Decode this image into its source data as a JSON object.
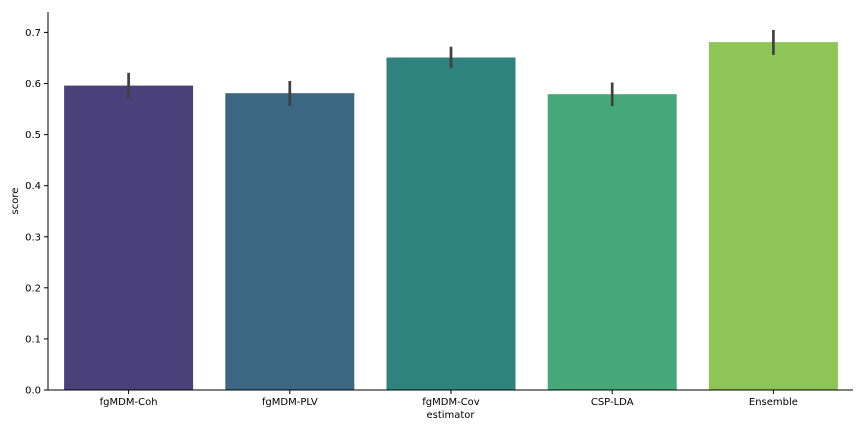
{
  "chart_data": {
    "type": "bar",
    "title": "",
    "xlabel": "estimator",
    "ylabel": "score",
    "categories": [
      "fgMDM-Coh",
      "fgMDM-PLV",
      "fgMDM-Cov",
      "CSP-LDA",
      "Ensemble"
    ],
    "values": [
      0.596,
      0.581,
      0.651,
      0.579,
      0.681
    ],
    "error_bars": [
      [
        0.571,
        0.621
      ],
      [
        0.556,
        0.605
      ],
      [
        0.63,
        0.672
      ],
      [
        0.556,
        0.602
      ],
      [
        0.656,
        0.705
      ]
    ],
    "colors": [
      "#4a417a",
      "#3b6782",
      "#2e837e",
      "#45a878",
      "#8fc557"
    ],
    "error_color": "#404040",
    "ylim": [
      0.0,
      0.74
    ],
    "yticks": [
      "0.0",
      "0.1",
      "0.2",
      "0.3",
      "0.4",
      "0.5",
      "0.6",
      "0.7"
    ],
    "grid": false,
    "legend": "none"
  }
}
